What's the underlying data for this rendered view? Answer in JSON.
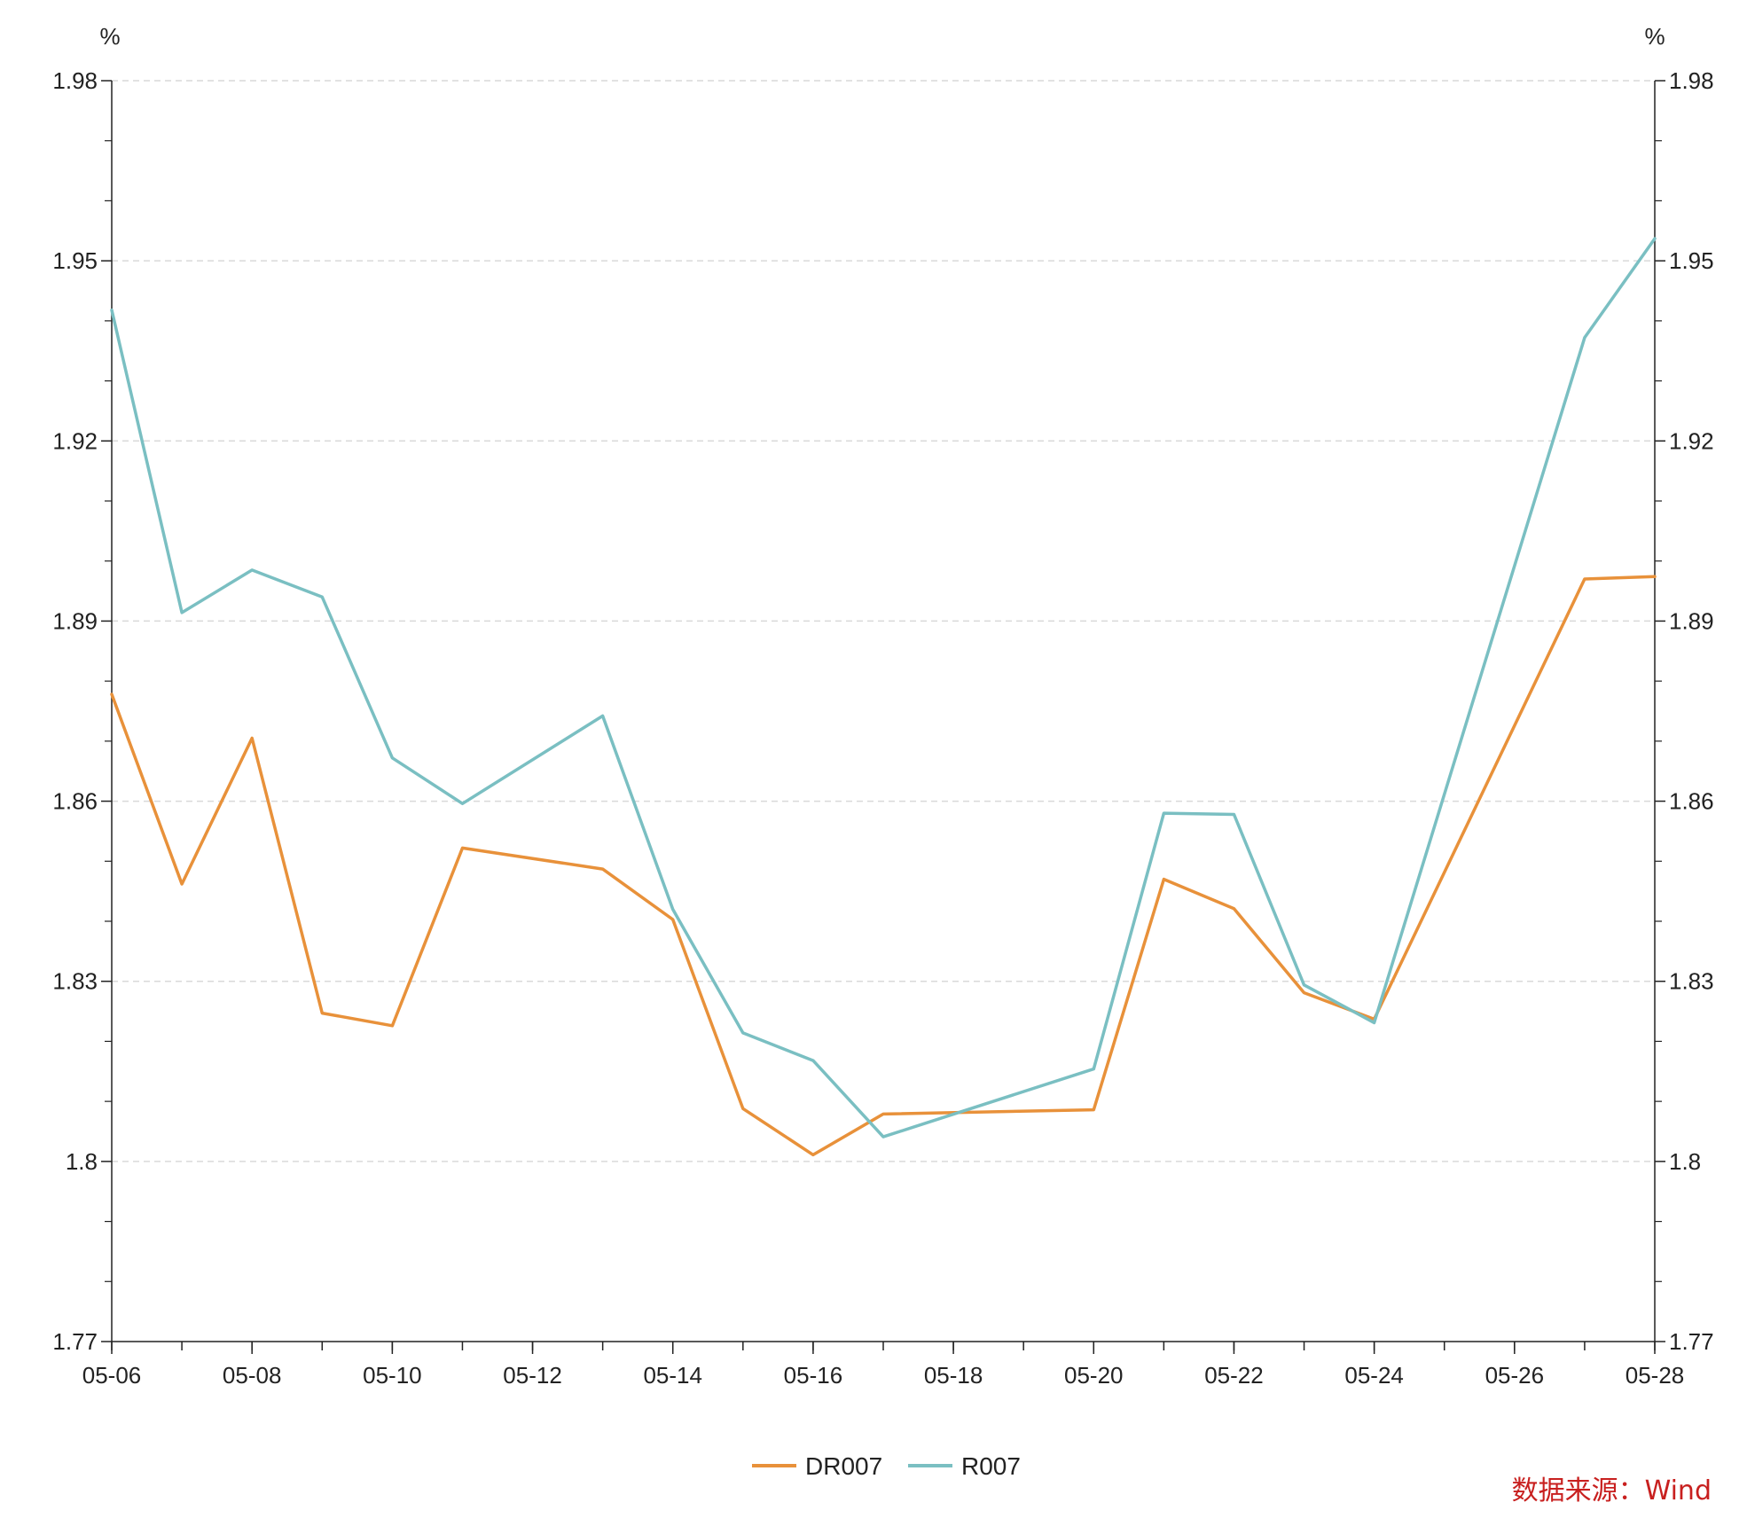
{
  "chart_data": {
    "type": "line",
    "title": "",
    "xlabel": "",
    "ylabel_left": "%",
    "ylabel_right": "%",
    "ylim": [
      1.77,
      1.98
    ],
    "y_ticks": [
      "1.77",
      "1.8",
      "1.83",
      "1.86",
      "1.89",
      "1.92",
      "1.95",
      "1.98"
    ],
    "x": [
      "05-06",
      "05-07",
      "05-08",
      "05-09",
      "05-10",
      "05-11",
      "05-13",
      "05-14",
      "05-15",
      "05-16",
      "05-17",
      "05-20",
      "05-21",
      "05-22",
      "05-23",
      "05-24",
      "05-27",
      "05-28"
    ],
    "x_ticks": [
      "05-06",
      "05-08",
      "05-10",
      "05-12",
      "05-14",
      "05-16",
      "05-18",
      "05-20",
      "05-22",
      "05-24",
      "05-26",
      "05-28"
    ],
    "series": [
      {
        "name": "DR007",
        "color": "#e8913a",
        "values": [
          1.8778,
          1.8462,
          1.8705,
          1.8247,
          1.8226,
          1.8522,
          1.8487,
          1.8403,
          1.8088,
          1.8011,
          1.8079,
          1.8086,
          1.847,
          1.8421,
          1.8281,
          1.8237,
          1.897,
          1.8974
        ]
      },
      {
        "name": "R007",
        "color": "#7abfc2",
        "values": [
          1.9418,
          1.8914,
          1.8985,
          1.894,
          1.8672,
          1.8596,
          1.8742,
          1.842,
          1.8214,
          1.8168,
          1.8041,
          1.8154,
          1.858,
          1.8578,
          1.8294,
          1.8231,
          1.9372,
          1.9537
        ]
      }
    ],
    "grid": true,
    "legend_position": "bottom-center",
    "source_text": "数据来源：Wind"
  }
}
